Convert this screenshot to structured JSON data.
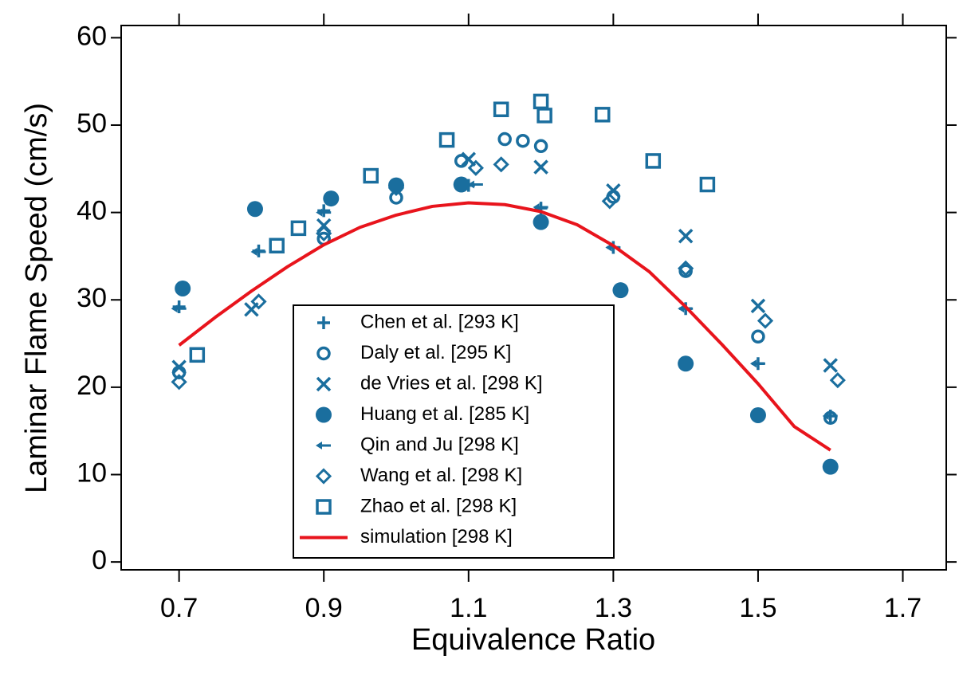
{
  "chart_data": {
    "type": "scatter",
    "x_label": "Equivalence Ratio",
    "y_label": "Laminar Flame Speed (cm/s)",
    "xlim": [
      0.62,
      1.76
    ],
    "ylim": [
      -0.9,
      61.4
    ],
    "xticks": [
      0.7,
      0.9,
      1.1,
      1.3,
      1.5,
      1.7
    ],
    "yticks": [
      0,
      10,
      20,
      30,
      40,
      50,
      60
    ],
    "legend": "lower center",
    "grid": false,
    "mirror_ticks": true,
    "series": [
      {
        "name": "Chen et al. [293 K]",
        "color": "#1a6e9e",
        "marker": "plus",
        "x": [
          0.7,
          0.81,
          0.9,
          1.0,
          1.1,
          1.2,
          1.3,
          1.4,
          1.5,
          1.6
        ],
        "values": [
          29.2,
          35.6,
          40.2,
          42.9,
          43.1,
          40.5,
          36,
          29,
          22.7,
          16.7
        ]
      },
      {
        "name": "Daly et al. [295 K]",
        "color": "#1a6e9e",
        "marker": "circle",
        "x": [
          0.7,
          0.9,
          1.0,
          1.09,
          1.15,
          1.175,
          1.2,
          1.3,
          1.4,
          1.5,
          1.6
        ],
        "values": [
          21.7,
          37,
          41.7,
          45.9,
          48.4,
          48.2,
          47.6,
          41.8,
          33.3,
          25.8,
          16.5
        ]
      },
      {
        "name": "de Vries et al. [298 K]",
        "color": "#1a6e9e",
        "marker": "x",
        "x": [
          0.7,
          0.8,
          0.9,
          1.1,
          1.2,
          1.3,
          1.4,
          1.5,
          1.6
        ],
        "values": [
          22.3,
          28.9,
          38.5,
          46.1,
          45.2,
          42.5,
          37.3,
          29.3,
          22.5
        ]
      },
      {
        "name": "Huang et al. [285 K]",
        "color": "#1a6e9e",
        "marker": "dot",
        "x": [
          0.705,
          0.805,
          0.91,
          1.0,
          1.09,
          1.2,
          1.31,
          1.4,
          1.5,
          1.6
        ],
        "values": [
          31.3,
          40.4,
          41.6,
          43.1,
          43.2,
          38.9,
          31.1,
          22.7,
          16.8,
          10.9
        ]
      },
      {
        "name": "Qin and Ju [298 K]",
        "color": "#1a6e9e",
        "marker": "arrow",
        "x": [
          0.7,
          0.81,
          0.9,
          1.11,
          1.2,
          1.3,
          1.4,
          1.5,
          1.6
        ],
        "values": [
          29,
          35.5,
          40,
          43.2,
          40.6,
          36,
          29,
          22.7,
          16.7
        ]
      },
      {
        "name": "Wang et al. [298 K]",
        "color": "#1a6e9e",
        "marker": "diamond",
        "x": [
          0.7,
          0.81,
          0.9,
          1.0,
          1.11,
          1.145,
          1.295,
          1.4,
          1.51,
          1.61
        ],
        "values": [
          20.6,
          29.8,
          37.6,
          42.8,
          45.1,
          45.5,
          41.3,
          33.6,
          27.6,
          20.8
        ]
      },
      {
        "name": "Zhao et al. [298 K]",
        "color": "#1a6e9e",
        "marker": "square",
        "x": [
          0.725,
          0.835,
          0.865,
          0.965,
          1.07,
          1.145,
          1.2,
          1.205,
          1.285,
          1.355,
          1.43
        ],
        "values": [
          23.7,
          36.2,
          38.2,
          44.2,
          48.3,
          51.8,
          52.7,
          51.1,
          51.2,
          45.9,
          43.2
        ]
      },
      {
        "name": "simulation [298 K]",
        "color": "#e8141c",
        "marker": "line",
        "x": [
          0.7,
          0.75,
          0.8,
          0.85,
          0.9,
          0.95,
          1.0,
          1.05,
          1.1,
          1.15,
          1.2,
          1.25,
          1.3,
          1.35,
          1.4,
          1.45,
          1.5,
          1.55,
          1.6
        ],
        "values": [
          24.8,
          28,
          31,
          33.8,
          36.3,
          38.3,
          39.7,
          40.7,
          41.1,
          40.9,
          40.1,
          38.6,
          36.2,
          33.2,
          29.2,
          24.9,
          20.4,
          15.5,
          12.8
        ]
      }
    ]
  }
}
